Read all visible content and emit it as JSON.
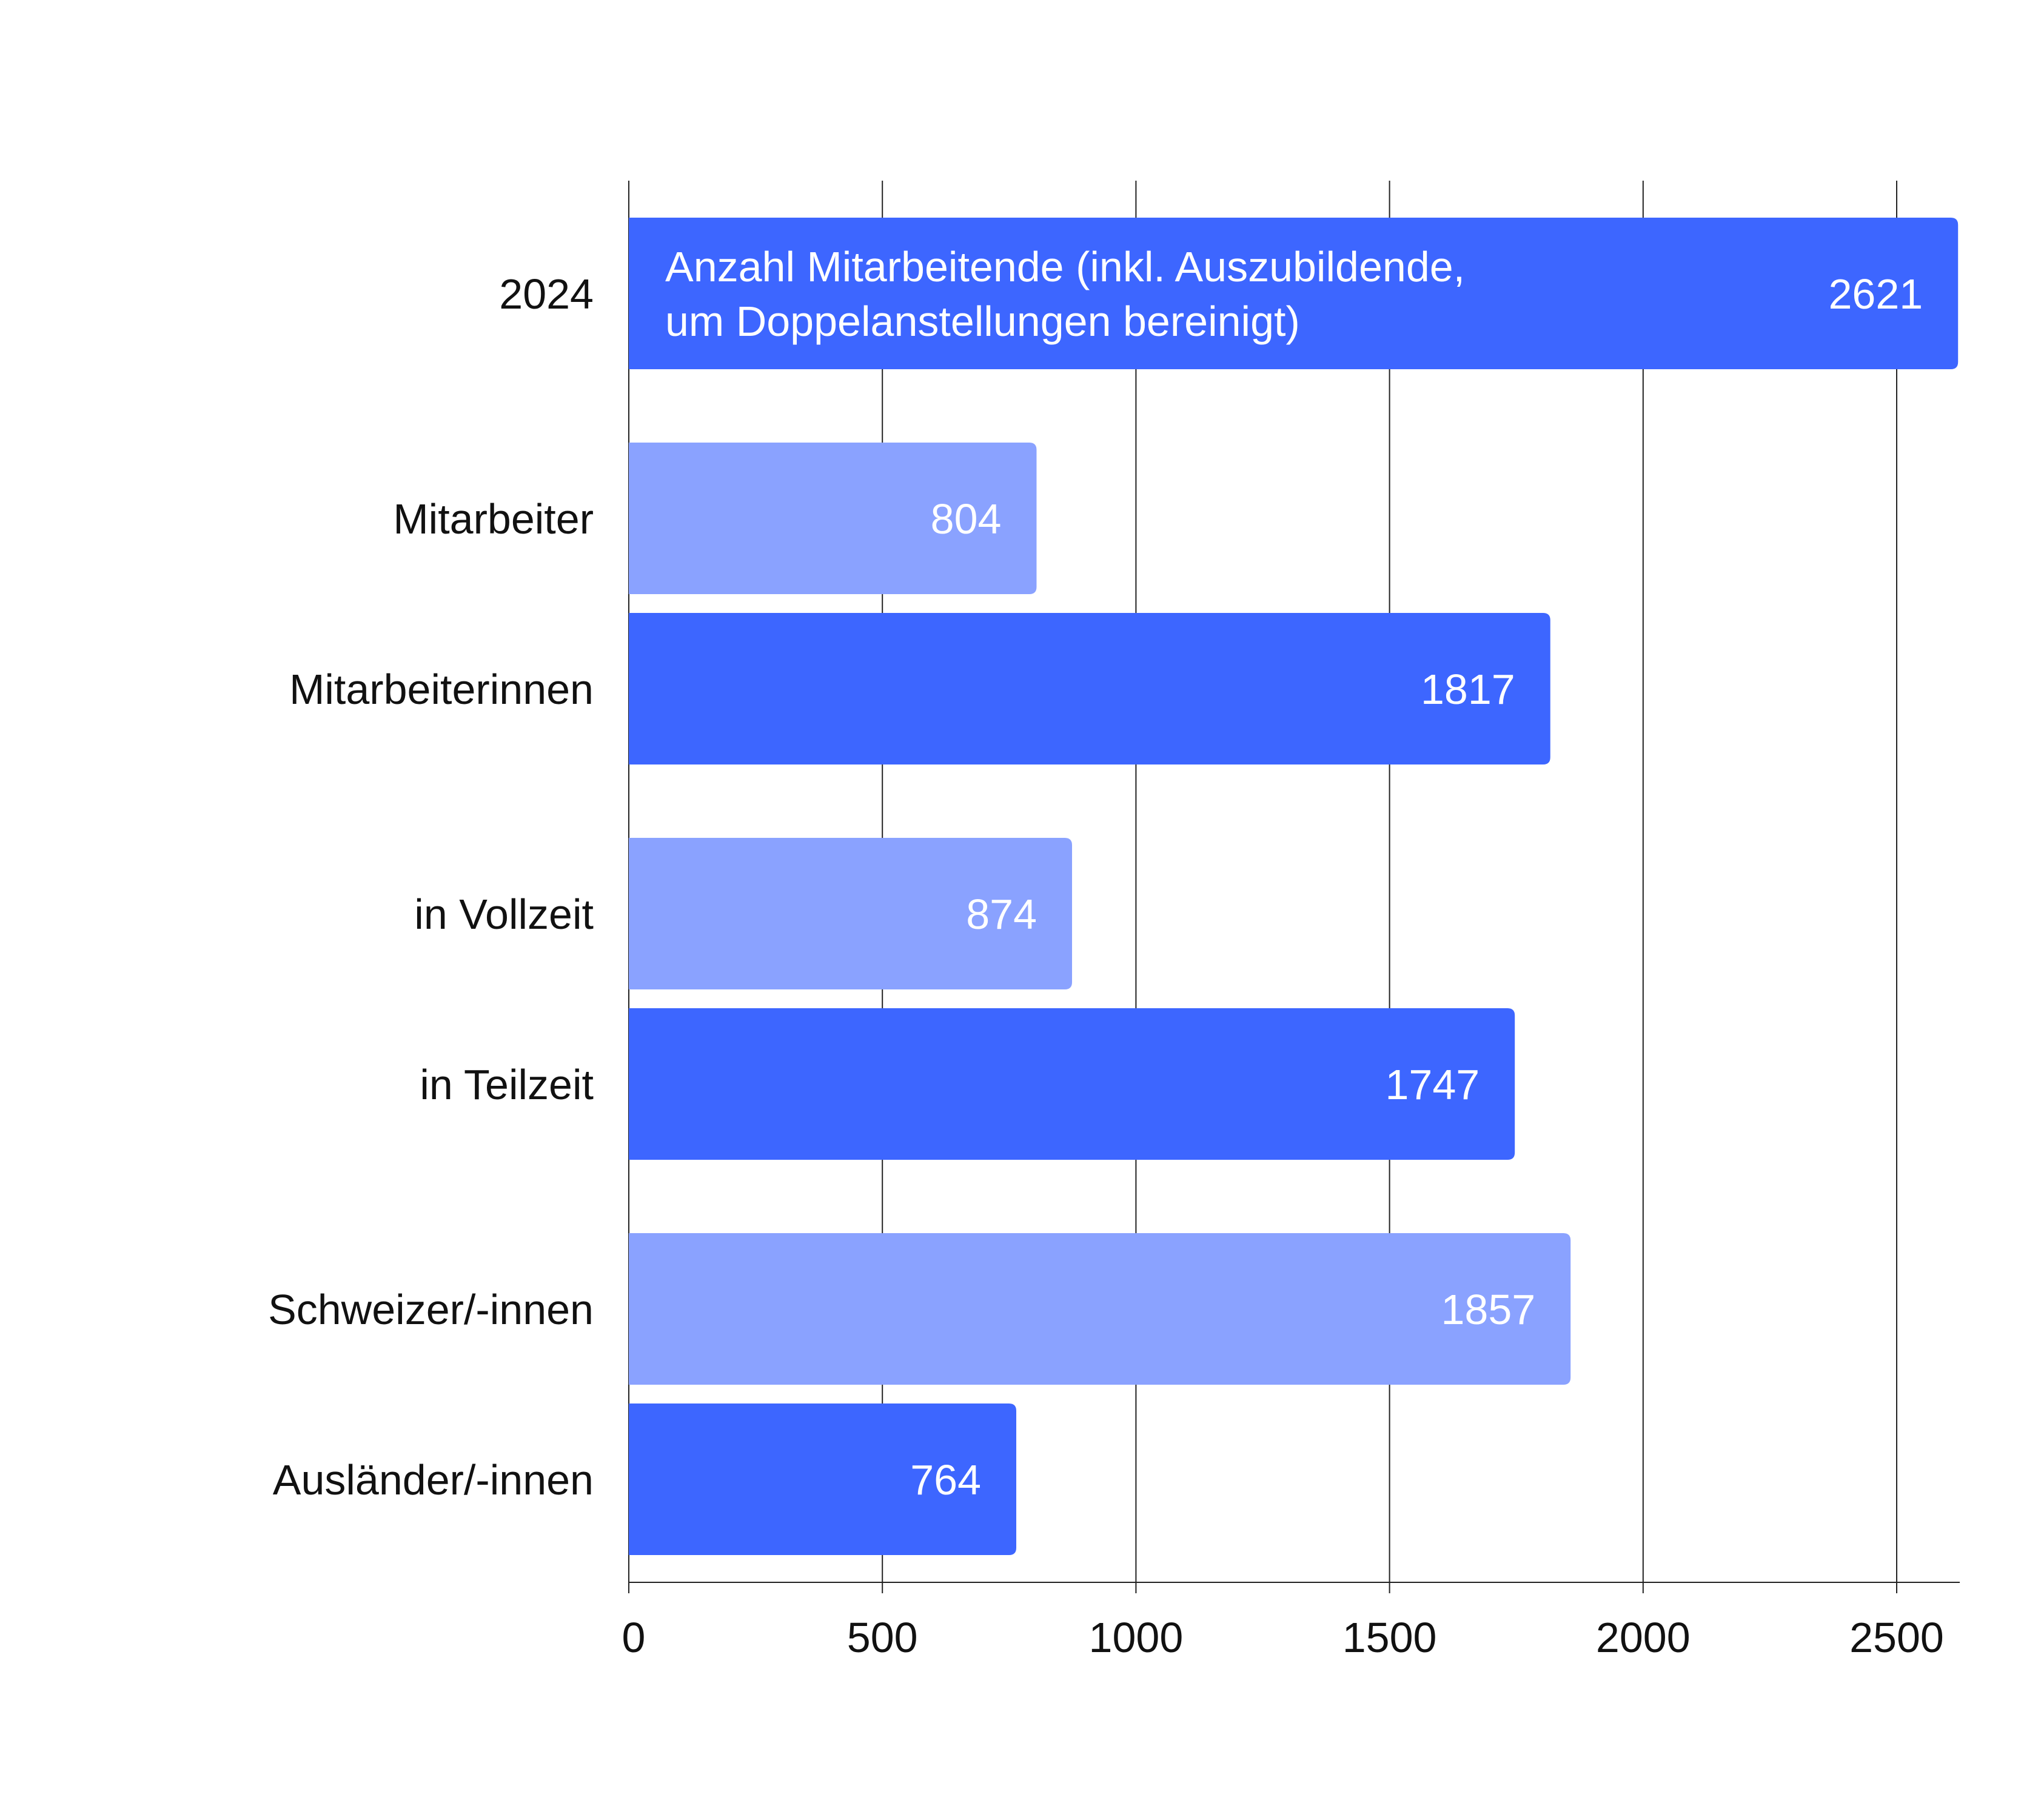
{
  "chart_data": {
    "type": "bar",
    "orientation": "horizontal",
    "title": "",
    "xlabel": "",
    "ylabel": "",
    "xlim": [
      0,
      2625
    ],
    "x_ticks": [
      0,
      500,
      1000,
      1500,
      2000,
      2500
    ],
    "grid": "vertical",
    "legend": "none",
    "categories": [
      "2024",
      "Mitarbeiter",
      "Mitarbeiterinnen",
      "in Vollzeit",
      "in Teilzeit",
      "Schweizer/-innen",
      "Ausländer/-innen"
    ],
    "values": [
      2621,
      804,
      1817,
      874,
      1747,
      1857,
      764
    ],
    "value_labels": [
      "2621",
      "804",
      "1817",
      "874",
      "1747",
      "1857",
      "764"
    ],
    "annotations": [
      {
        "category": "2024",
        "lines": [
          "Anzahl Mitarbeitende (inkl. Auszubildende,",
          "um Doppelanstellungen bereinigt)"
        ]
      }
    ],
    "bar_colors": [
      "#3d66ff",
      "#8aa2ff",
      "#3d66ff",
      "#8aa2ff",
      "#3d66ff",
      "#8aa2ff",
      "#3d66ff"
    ],
    "colors": {
      "dark_bar": "#3d66ff",
      "light_bar": "#8aa2ff",
      "grid": "#222222",
      "text": "#111111",
      "value_text": "#ffffff"
    }
  }
}
